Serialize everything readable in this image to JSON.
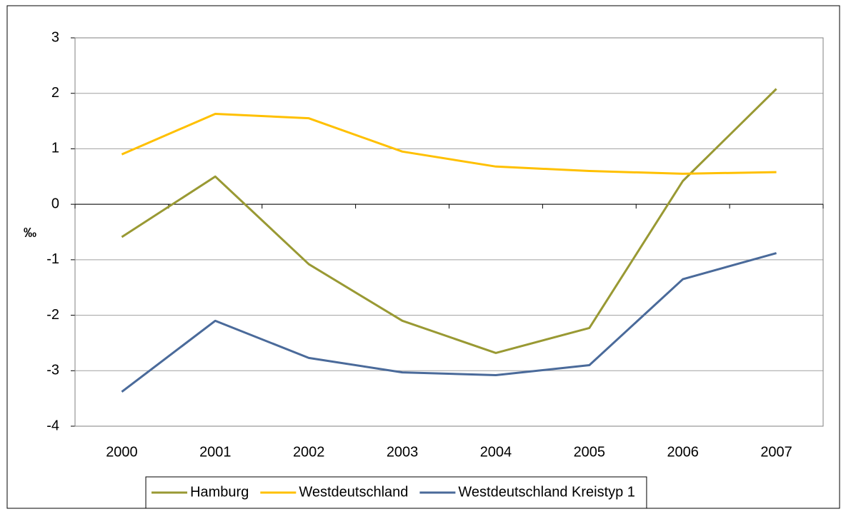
{
  "chart_data": {
    "type": "line",
    "y_label": "‰",
    "categories": [
      "2000",
      "2001",
      "2002",
      "2003",
      "2004",
      "2005",
      "2006",
      "2007"
    ],
    "series": [
      {
        "name": "Hamburg",
        "color": "#999933",
        "values": [
          -0.59,
          0.5,
          -1.08,
          -2.1,
          -2.68,
          -2.23,
          0.42,
          2.08
        ]
      },
      {
        "name": "Westdeutschland",
        "color": "#ffc000",
        "values": [
          0.9,
          1.63,
          1.55,
          0.95,
          0.68,
          0.6,
          0.55,
          0.58
        ]
      },
      {
        "name": "Westdeutschland Kreistyp 1",
        "color": "#4a6a9a",
        "values": [
          -3.38,
          -2.1,
          -2.77,
          -3.03,
          -3.08,
          -2.9,
          -1.35,
          -0.88
        ]
      }
    ],
    "ylim": [
      -4,
      3
    ],
    "yticks": [
      -4,
      -3,
      -2,
      -1,
      0,
      1,
      2,
      3
    ],
    "grid": true,
    "legend": "bottom"
  }
}
